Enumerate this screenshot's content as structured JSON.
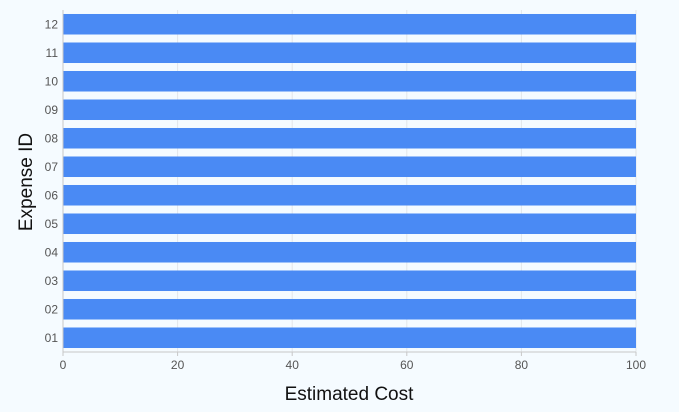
{
  "chart_data": {
    "type": "bar",
    "orientation": "horizontal",
    "categories": [
      "01",
      "02",
      "03",
      "04",
      "05",
      "06",
      "07",
      "08",
      "09",
      "10",
      "11",
      "12"
    ],
    "series": [
      {
        "values": [
          100,
          100,
          100,
          100,
          100,
          100,
          100,
          100,
          100,
          100,
          100,
          100
        ],
        "color": "#4a8af4"
      }
    ],
    "xlabel": "Estimated Cost",
    "ylabel": "Expense ID",
    "xlim": [
      0,
      100
    ],
    "xticks": [
      0,
      20,
      40,
      60,
      80,
      100
    ],
    "grid": true,
    "legend": "none"
  },
  "colors": {
    "background": "#f5fbff",
    "grid": "#e3e7ea",
    "axis": "#c7c7c7",
    "bar": "#4a8af4"
  }
}
